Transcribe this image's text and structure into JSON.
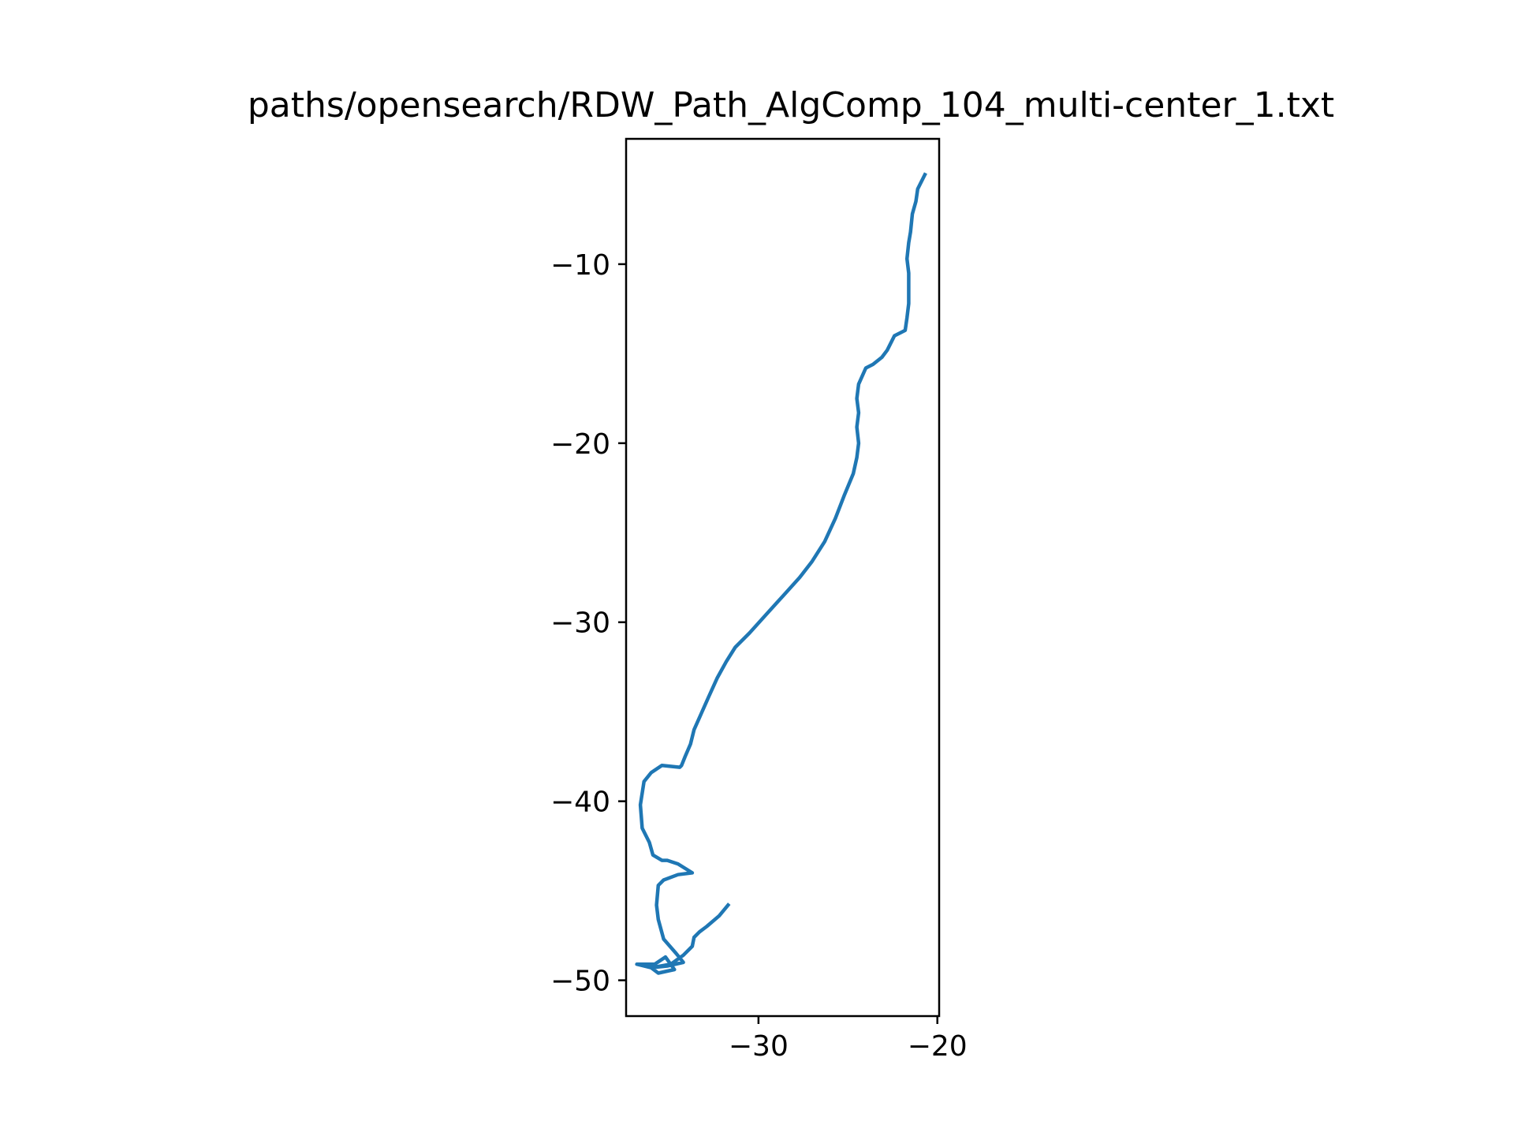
{
  "chart_data": {
    "type": "line",
    "title": "paths/opensearch/RDW_Path_AlgComp_104_multi-center_1.txt",
    "xlabel": "",
    "ylabel": "",
    "xlim": [
      -37.4,
      -19.9
    ],
    "ylim": [
      -52.0,
      -3.0
    ],
    "grid": false,
    "x_ticks": [
      -30,
      -20
    ],
    "x_tick_labels": [
      "−30",
      "−20"
    ],
    "y_ticks": [
      -10,
      -20,
      -30,
      -40,
      -50
    ],
    "y_tick_labels": [
      "−10",
      "−20",
      "−30",
      "−40",
      "−50"
    ],
    "series": [
      {
        "color": "#1f77b4",
        "x": [
          -20.7,
          -21.1,
          -21.2,
          -21.4,
          -21.5,
          -21.6,
          -21.7,
          -21.6,
          -21.6,
          -21.6,
          -21.7,
          -21.8,
          -22.4,
          -22.8,
          -23.1,
          -23.6,
          -24.0,
          -24.4,
          -24.5,
          -24.4,
          -24.5,
          -24.4,
          -24.5,
          -24.7,
          -25.2,
          -25.7,
          -26.3,
          -27.0,
          -27.7,
          -28.6,
          -29.6,
          -30.5,
          -31.3,
          -31.8,
          -32.3,
          -32.8,
          -33.2,
          -33.6,
          -33.8,
          -34.1,
          -34.3,
          -34.4,
          -35.4,
          -36.0,
          -36.4,
          -36.6,
          -36.5,
          -36.1,
          -35.9,
          -35.4,
          -35.1,
          -34.5,
          -33.7,
          -34.5,
          -35.3,
          -35.6,
          -35.7,
          -35.6,
          -35.3,
          -34.6,
          -34.2,
          -35.1,
          -36.0,
          -35.6,
          -34.7,
          -35.2,
          -35.8,
          -36.8,
          -36.0,
          -34.9,
          -34.2,
          -33.7,
          -33.6,
          -33.3,
          -32.9,
          -32.2,
          -31.7
        ],
        "y": [
          -5.0,
          -5.8,
          -6.5,
          -7.2,
          -8.2,
          -8.8,
          -9.7,
          -10.5,
          -11.4,
          -12.2,
          -13.0,
          -13.7,
          -14.0,
          -14.8,
          -15.2,
          -15.6,
          -15.8,
          -16.7,
          -17.5,
          -18.3,
          -19.1,
          -20.0,
          -20.8,
          -21.7,
          -22.9,
          -24.2,
          -25.5,
          -26.6,
          -27.5,
          -28.5,
          -29.6,
          -30.6,
          -31.4,
          -32.2,
          -33.1,
          -34.2,
          -35.1,
          -36.0,
          -36.8,
          -37.5,
          -38.0,
          -38.1,
          -38.0,
          -38.4,
          -38.9,
          -40.2,
          -41.5,
          -42.3,
          -43.0,
          -43.3,
          -43.3,
          -43.5,
          -44.0,
          -44.1,
          -44.4,
          -44.7,
          -45.8,
          -46.6,
          -47.7,
          -48.5,
          -49.0,
          -49.2,
          -49.3,
          -49.6,
          -49.4,
          -48.7,
          -49.1,
          -49.1,
          -49.3,
          -49.1,
          -48.6,
          -48.1,
          -47.6,
          -47.3,
          -47.0,
          -46.4,
          -45.8
        ]
      }
    ]
  }
}
